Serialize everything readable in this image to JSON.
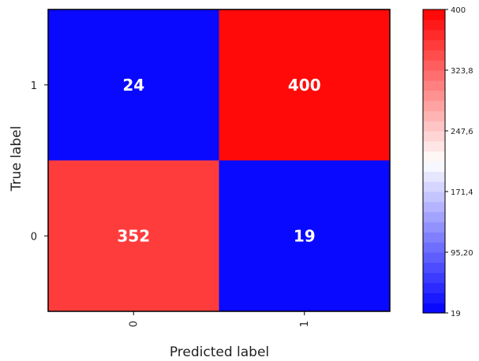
{
  "chart_data": {
    "type": "heatmap",
    "title": "",
    "xlabel": "Predicted label",
    "ylabel": "True label",
    "x_categories": [
      "0",
      "1"
    ],
    "y_categories": [
      "1",
      "0"
    ],
    "matrix": [
      [
        24,
        400
      ],
      [
        352,
        19
      ]
    ],
    "colorbar": {
      "min": 19,
      "max": 400,
      "tick_labels": [
        "19",
        "95,20",
        "171,4",
        "247,6",
        "323,8",
        "400"
      ],
      "colors": {
        "low": "#0000ff",
        "mid": "#ffffff",
        "high": "#ff0000"
      },
      "steps": 30
    },
    "cell_text_color": "#ffffff",
    "grid": false
  }
}
